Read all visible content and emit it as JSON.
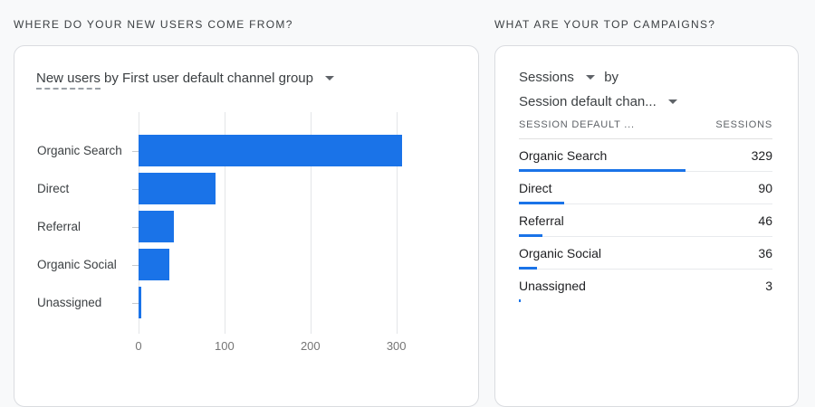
{
  "colors": {
    "accent_blue": "#1a73e8",
    "card_border": "#dadce0",
    "background": "#f8f9fa"
  },
  "left_section": {
    "header": "WHERE DO YOUR NEW USERS COME FROM?"
  },
  "left_card": {
    "title_metric": "New users",
    "title_rest": "by First user default channel group"
  },
  "right_section": {
    "header": "WHAT ARE YOUR TOP CAMPAIGNS?"
  },
  "right_card": {
    "metric_label": "Sessions",
    "by_label": "by",
    "dimension_label": "Session default chan...",
    "table": {
      "col1_header": "SESSION DEFAULT ...",
      "col2_header": "SESSIONS",
      "max_value": 329,
      "rows": [
        {
          "label": "Organic Search",
          "value": 329
        },
        {
          "label": "Direct",
          "value": 90
        },
        {
          "label": "Referral",
          "value": 46
        },
        {
          "label": "Organic Social",
          "value": 36
        },
        {
          "label": "Unassigned",
          "value": 3
        }
      ]
    }
  },
  "chart_data": [
    {
      "type": "bar",
      "orientation": "horizontal",
      "title": "New users by First user default channel group",
      "categories": [
        "Organic Search",
        "Direct",
        "Referral",
        "Organic Social",
        "Unassigned"
      ],
      "values": [
        307,
        90,
        41,
        36,
        3
      ],
      "xlabel": "",
      "ylabel": "",
      "xlim": [
        0,
        340
      ],
      "xticks": [
        0,
        100,
        200,
        300
      ],
      "grid": "vertical-only",
      "legend": "none",
      "bar_color": "#1a73e8"
    },
    {
      "type": "table",
      "title": "Sessions by Session default channel group",
      "columns": [
        "SESSION DEFAULT ...",
        "SESSIONS"
      ],
      "rows": [
        [
          "Organic Search",
          329
        ],
        [
          "Direct",
          90
        ],
        [
          "Referral",
          46
        ],
        [
          "Organic Social",
          36
        ],
        [
          "Unassigned",
          3
        ]
      ],
      "bar_color": "#1a73e8",
      "bar_scale_max": 329
    }
  ]
}
